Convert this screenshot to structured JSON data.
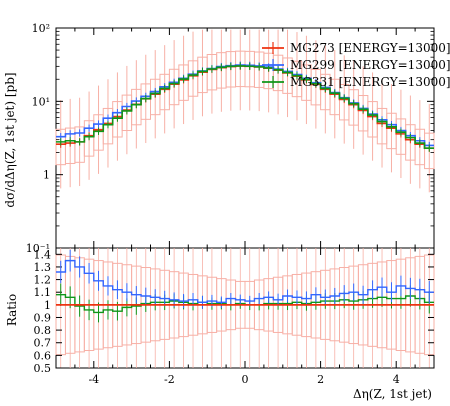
{
  "chart_data": [
    {
      "type": "line",
      "panel": "main",
      "ylabel": "dσ/dΔη(Z, 1st jet) [pb]",
      "yscale": "log",
      "xlim": [
        -5,
        5
      ],
      "ylim": [
        0.1,
        100
      ],
      "ytick_labels": [
        "10²",
        "10¹",
        "1",
        "10⁻¹"
      ],
      "ytick_values": [
        100,
        10,
        1,
        0.1
      ],
      "legend_position": "top-right",
      "x": [
        -4.875,
        -4.625,
        -4.375,
        -4.125,
        -3.875,
        -3.625,
        -3.375,
        -3.125,
        -2.875,
        -2.625,
        -2.375,
        -2.125,
        -1.875,
        -1.625,
        -1.375,
        -1.125,
        -0.875,
        -0.625,
        -0.375,
        -0.125,
        0.125,
        0.375,
        0.625,
        0.875,
        1.125,
        1.375,
        1.625,
        1.875,
        2.125,
        2.375,
        2.625,
        2.875,
        3.125,
        3.375,
        3.625,
        3.875,
        4.125,
        4.375,
        4.625,
        4.875
      ],
      "series": [
        {
          "name": "MG273 [ENERGY=13000]",
          "color": "#ee3311",
          "values": [
            2.6,
            2.7,
            2.8,
            3.4,
            4.1,
            5.0,
            6.2,
            7.6,
            9.1,
            10.8,
            12.5,
            14.6,
            17.1,
            19.6,
            22.3,
            25.0,
            27.2,
            28.8,
            29.8,
            30.2,
            30.0,
            29.4,
            28.3,
            26.6,
            24.4,
            22.0,
            19.6,
            17.0,
            14.6,
            12.5,
            10.6,
            9.0,
            7.5,
            6.2,
            5.0,
            4.3,
            3.6,
            3.0,
            2.6,
            2.3
          ]
        },
        {
          "name": "MG299 [ENERGY=13000]",
          "color": "#3366ff",
          "values": [
            3.3,
            3.6,
            3.7,
            4.3,
            4.9,
            5.9,
            7.0,
            8.5,
            10.1,
            11.7,
            13.6,
            15.8,
            18.2,
            20.6,
            23.5,
            26.0,
            28.0,
            29.8,
            30.6,
            31.2,
            31.0,
            30.4,
            29.4,
            27.6,
            25.6,
            23.2,
            20.6,
            18.0,
            15.5,
            13.2,
            11.2,
            9.5,
            8.0,
            6.7,
            5.6,
            4.8,
            4.0,
            3.4,
            2.9,
            2.5
          ]
        },
        {
          "name": "MG331 [ENERGY=13000]",
          "color": "#109618",
          "values": [
            2.8,
            2.9,
            2.8,
            3.3,
            3.9,
            4.8,
            5.9,
            7.4,
            9.0,
            10.9,
            12.8,
            15.0,
            17.5,
            20.1,
            22.8,
            25.6,
            27.6,
            29.1,
            30.0,
            30.4,
            30.1,
            29.5,
            28.5,
            26.9,
            24.8,
            22.4,
            19.9,
            17.4,
            15.0,
            12.9,
            11.0,
            9.3,
            7.8,
            6.5,
            5.3,
            4.5,
            3.8,
            3.2,
            2.7,
            2.3
          ]
        }
      ]
    },
    {
      "type": "line",
      "panel": "ratio",
      "ylabel": "Ratio",
      "xlabel": "Δη(Z, 1st jet)",
      "xlim": [
        -5,
        5
      ],
      "ylim": [
        0.5,
        1.45
      ],
      "ytick_labels": [
        "1.4",
        "1.3",
        "1.2",
        "1.1",
        "1",
        "0.9",
        "0.8",
        "0.7",
        "0.6",
        "0.5"
      ],
      "ytick_values": [
        1.4,
        1.3,
        1.2,
        1.1,
        1.0,
        0.9,
        0.8,
        0.7,
        0.6,
        0.5
      ],
      "xtick_labels": [
        "-4",
        "-2",
        "0",
        "2",
        "4"
      ],
      "xtick_values": [
        -4,
        -2,
        0,
        2,
        4
      ],
      "series": [
        {
          "name": "MG273 [ENERGY=13000]",
          "color": "#ee3311",
          "values": [
            1,
            1,
            1,
            1,
            1,
            1,
            1,
            1,
            1,
            1,
            1,
            1,
            1,
            1,
            1,
            1,
            1,
            1,
            1,
            1,
            1,
            1,
            1,
            1,
            1,
            1,
            1,
            1,
            1,
            1,
            1,
            1,
            1,
            1,
            1,
            1,
            1,
            1,
            1,
            1
          ]
        },
        {
          "name": "MG299 [ENERGY=13000]",
          "color": "#3366ff",
          "values": [
            1.26,
            1.35,
            1.3,
            1.25,
            1.19,
            1.15,
            1.12,
            1.1,
            1.08,
            1.07,
            1.06,
            1.05,
            1.04,
            1.03,
            1.04,
            1.02,
            1.03,
            1.02,
            1.05,
            1.04,
            1.03,
            1.05,
            1.06,
            1.04,
            1.07,
            1.06,
            1.05,
            1.08,
            1.06,
            1.07,
            1.09,
            1.1,
            1.08,
            1.12,
            1.14,
            1.1,
            1.15,
            1.13,
            1.12,
            1.1
          ]
        },
        {
          "name": "MG331 [ENERGY=13000]",
          "color": "#109618",
          "values": [
            1.08,
            1.06,
            0.99,
            0.96,
            0.94,
            0.96,
            0.95,
            0.98,
            0.99,
            1.01,
            1.02,
            1.02,
            1.03,
            1.02,
            1.01,
            1.02,
            1.01,
            1.01,
            1.0,
            1.01,
            1.0,
            1.0,
            1.01,
            1.01,
            1.01,
            1.02,
            1.01,
            1.02,
            1.03,
            1.03,
            1.04,
            1.03,
            1.04,
            1.05,
            1.06,
            1.05,
            1.05,
            1.07,
            1.05,
            1.02
          ]
        }
      ]
    }
  ]
}
